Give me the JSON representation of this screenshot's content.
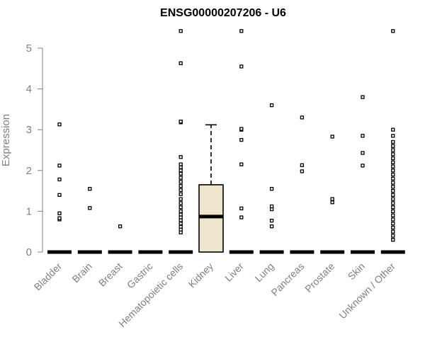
{
  "chart_data": {
    "type": "box",
    "title": "ENSG00000207206 - U6",
    "ylabel": "Expression",
    "xlabel": "",
    "ylim": [
      0,
      5.5
    ],
    "yticks": [
      0,
      1,
      2,
      3,
      4,
      5
    ],
    "grid": false,
    "box_fill": "#ede6cc",
    "categories": [
      "Bladder",
      "Brain",
      "Breast",
      "Gastric",
      "Hematopoietic cells",
      "Kidney",
      "Liver",
      "Lung",
      "Pancreas",
      "Prostate",
      "Skin",
      "Unknown / Other"
    ],
    "boxes": [
      {
        "q1": 0,
        "median": 0,
        "q3": 0,
        "whisker_low": 0,
        "whisker_high": 0,
        "outliers": [
          0.8,
          0.83,
          0.95,
          1.4,
          1.78,
          2.12,
          3.13
        ]
      },
      {
        "q1": 0,
        "median": 0,
        "q3": 0,
        "whisker_low": 0,
        "whisker_high": 0,
        "outliers": [
          1.08,
          1.55
        ]
      },
      {
        "q1": 0,
        "median": 0,
        "q3": 0,
        "whisker_low": 0,
        "whisker_high": 0,
        "outliers": [
          0.63
        ]
      },
      {
        "q1": 0,
        "median": 0,
        "q3": 0,
        "whisker_low": 0,
        "whisker_high": 0,
        "outliers": []
      },
      {
        "q1": 0,
        "median": 0,
        "q3": 0,
        "whisker_low": 0,
        "whisker_high": 0,
        "outliers": [
          0.48,
          0.55,
          0.62,
          0.7,
          0.78,
          0.85,
          0.92,
          1.0,
          1.1,
          1.2,
          1.3,
          1.42,
          1.52,
          1.62,
          1.72,
          1.82,
          1.92,
          2.0,
          2.08,
          2.15,
          2.33,
          3.18,
          3.2,
          4.63,
          5.42
        ]
      },
      {
        "q1": 0,
        "median": 0.87,
        "q3": 1.65,
        "whisker_low": 0,
        "whisker_high": 3.12,
        "outliers": []
      },
      {
        "q1": 0,
        "median": 0,
        "q3": 0,
        "whisker_low": 0,
        "whisker_high": 0,
        "outliers": [
          0.85,
          1.07,
          2.15,
          2.75,
          3.0,
          3.02,
          4.55,
          5.42
        ]
      },
      {
        "q1": 0,
        "median": 0,
        "q3": 0,
        "whisker_low": 0,
        "whisker_high": 0,
        "outliers": [
          0.63,
          0.77,
          1.05,
          1.12,
          1.55,
          3.6
        ]
      },
      {
        "q1": 0,
        "median": 0,
        "q3": 0,
        "whisker_low": 0,
        "whisker_high": 0,
        "outliers": [
          1.98,
          2.13,
          3.3
        ]
      },
      {
        "q1": 0,
        "median": 0,
        "q3": 0,
        "whisker_low": 0,
        "whisker_high": 0,
        "outliers": [
          1.22,
          1.3,
          2.83
        ]
      },
      {
        "q1": 0,
        "median": 0,
        "q3": 0,
        "whisker_low": 0,
        "whisker_high": 0,
        "outliers": [
          2.12,
          2.43,
          2.85,
          3.8
        ]
      },
      {
        "q1": 0,
        "median": 0,
        "q3": 0,
        "whisker_low": 0,
        "whisker_high": 0,
        "outliers": [
          0.3,
          0.4,
          0.5,
          0.6,
          0.7,
          0.8,
          0.9,
          1.0,
          1.1,
          1.2,
          1.3,
          1.4,
          1.5,
          1.6,
          1.7,
          1.8,
          1.9,
          2.0,
          2.1,
          2.2,
          2.3,
          2.4,
          2.5,
          2.6,
          2.7,
          2.85,
          3.0,
          5.42
        ]
      }
    ]
  }
}
